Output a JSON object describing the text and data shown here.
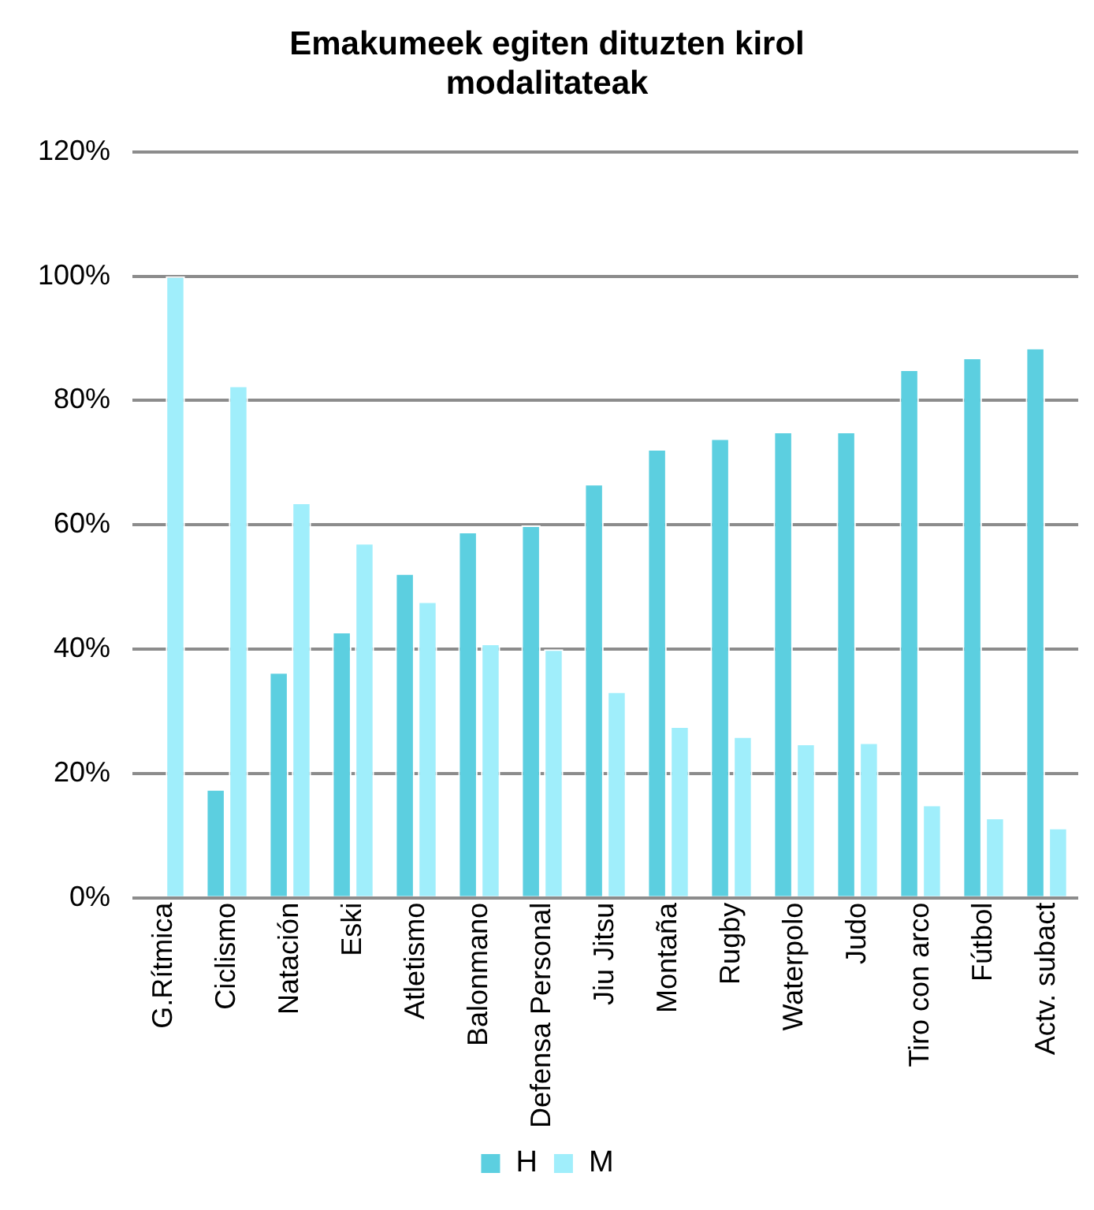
{
  "chart_data": {
    "type": "bar",
    "title": [
      "Emakumeek egiten dituzten kirol",
      "modalitateak"
    ],
    "categories": [
      "G.Rítmica",
      "Ciclismo",
      "Natación",
      "Eski",
      "Atletismo",
      "Balonmano",
      "Defensa Personal",
      "Jiu Jitsu",
      "Montaña",
      "Rugby",
      "Waterpolo",
      "Judo",
      "Tiro con arco",
      "Fútbol",
      "Actv. subact"
    ],
    "series": [
      {
        "name": "H",
        "color": "#5ccfe0",
        "values": [
          0,
          17.5,
          36.3,
          42.8,
          52.2,
          58.9,
          59.9,
          66.6,
          72.2,
          73.9,
          75.0,
          75.0,
          85.0,
          86.9,
          88.5
        ]
      },
      {
        "name": "M",
        "color": "#a0eefb",
        "values": [
          100,
          82.4,
          63.6,
          57.1,
          47.7,
          40.9,
          40.0,
          33.2,
          27.6,
          26.0,
          24.8,
          25.0,
          15.0,
          12.9,
          11.3
        ]
      }
    ],
    "ylim": [
      0,
      120
    ],
    "yticks": [
      {
        "value": 0,
        "label": "0%"
      },
      {
        "value": 20,
        "label": "20%"
      },
      {
        "value": 40,
        "label": "40%"
      },
      {
        "value": 60,
        "label": "60%"
      },
      {
        "value": 80,
        "label": "80%"
      },
      {
        "value": 100,
        "label": "100%"
      },
      {
        "value": 120,
        "label": "120%"
      }
    ],
    "grid": "y",
    "legend": "bottom"
  }
}
